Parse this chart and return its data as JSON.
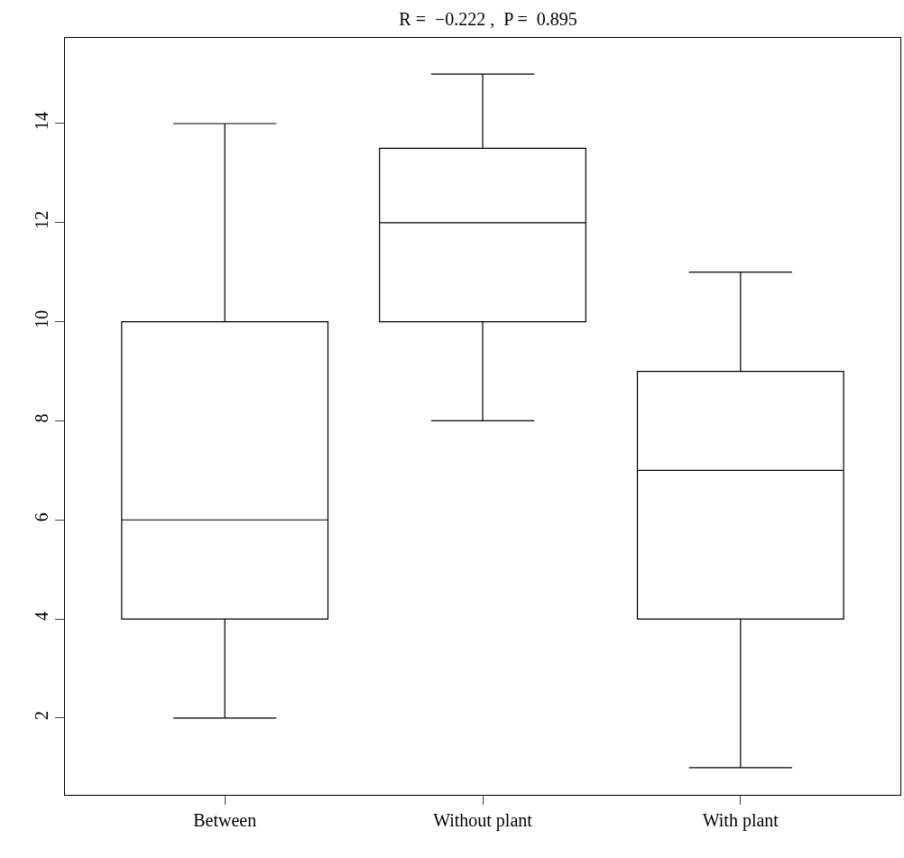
{
  "chart_data": {
    "type": "box",
    "title": "R =  −0.222 ,  P =  0.895",
    "categories": [
      "Between",
      "Without plant",
      "With plant"
    ],
    "boxes": [
      {
        "low": 2,
        "q1": 4,
        "median": 6,
        "q3": 10,
        "high": 14
      },
      {
        "low": 8,
        "q1": 10,
        "median": 12,
        "q3": 13.5,
        "high": 15
      },
      {
        "low": 1,
        "q1": 4,
        "median": 7,
        "q3": 9,
        "high": 11
      }
    ],
    "ylim": [
      0.45,
      15.73
    ],
    "yticks": [
      2,
      4,
      6,
      8,
      10,
      12,
      14
    ]
  }
}
